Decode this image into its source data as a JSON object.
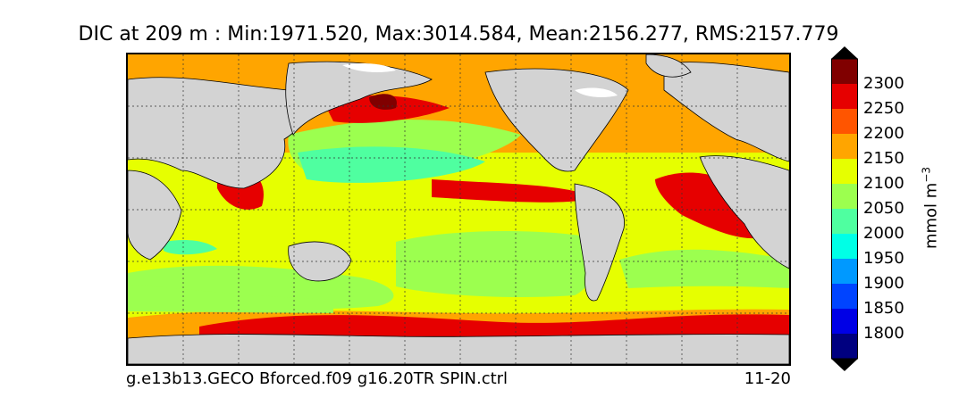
{
  "title": "DIC at 209 m : Min:1971.520, Max:3014.584, Mean:2156.277, RMS:2157.779",
  "footer": {
    "run_name": "g.e13b13.GECO Bforced.f09 g16.20TR SPIN.ctrl",
    "period": "11-20"
  },
  "colorbar": {
    "unit_base": "mmol m",
    "unit_exponent": "−3",
    "ticks": [
      "2300",
      "2250",
      "2200",
      "2150",
      "2100",
      "2050",
      "2000",
      "1950",
      "1900",
      "1850",
      "1800"
    ],
    "level_colors_top_to_bottom": [
      "#800000",
      "#e60000",
      "#ff5500",
      "#ffa500",
      "#e6ff00",
      "#9cff4f",
      "#4fffa0",
      "#00ffe6",
      "#0099ff",
      "#0044ff",
      "#0000e6",
      "#000080"
    ],
    "extend": "both"
  },
  "map": {
    "projection": "cylindrical global",
    "grid": "dotted lat/lon gridlines",
    "land_color": "#d3d3d3",
    "missing_color": "#ffffff"
  }
}
